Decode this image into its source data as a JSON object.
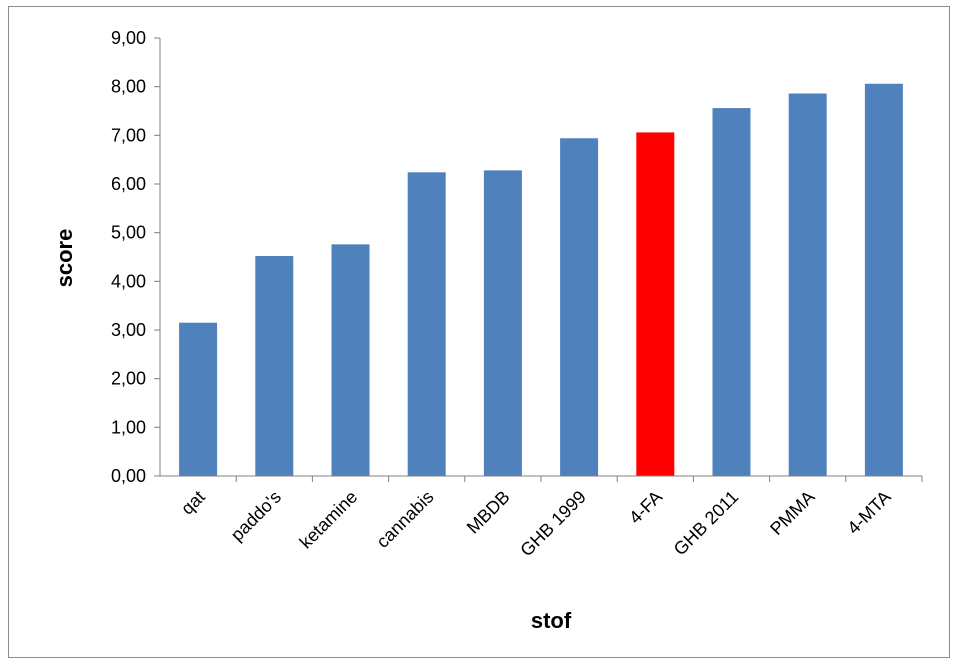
{
  "chart_data": {
    "type": "bar",
    "xlabel": "stof",
    "ylabel": "score",
    "categories": [
      "qat",
      "paddo's",
      "ketamine",
      "cannabis",
      "MBDB",
      "GHB 1999",
      "4-FA",
      "GHB 2011",
      "PMMA",
      "4-MTA"
    ],
    "values": [
      3.15,
      4.52,
      4.76,
      6.24,
      6.28,
      6.94,
      7.06,
      7.56,
      7.86,
      8.06
    ],
    "ylim": [
      0,
      9
    ],
    "yticks": [
      "0,00",
      "1,00",
      "2,00",
      "3,00",
      "4,00",
      "5,00",
      "6,00",
      "7,00",
      "8,00",
      "9,00"
    ],
    "grid": false,
    "legend": "none",
    "colors": {
      "default": "#4f81bd",
      "highlight": "#ff0000",
      "highlight_category": "4-FA"
    }
  }
}
